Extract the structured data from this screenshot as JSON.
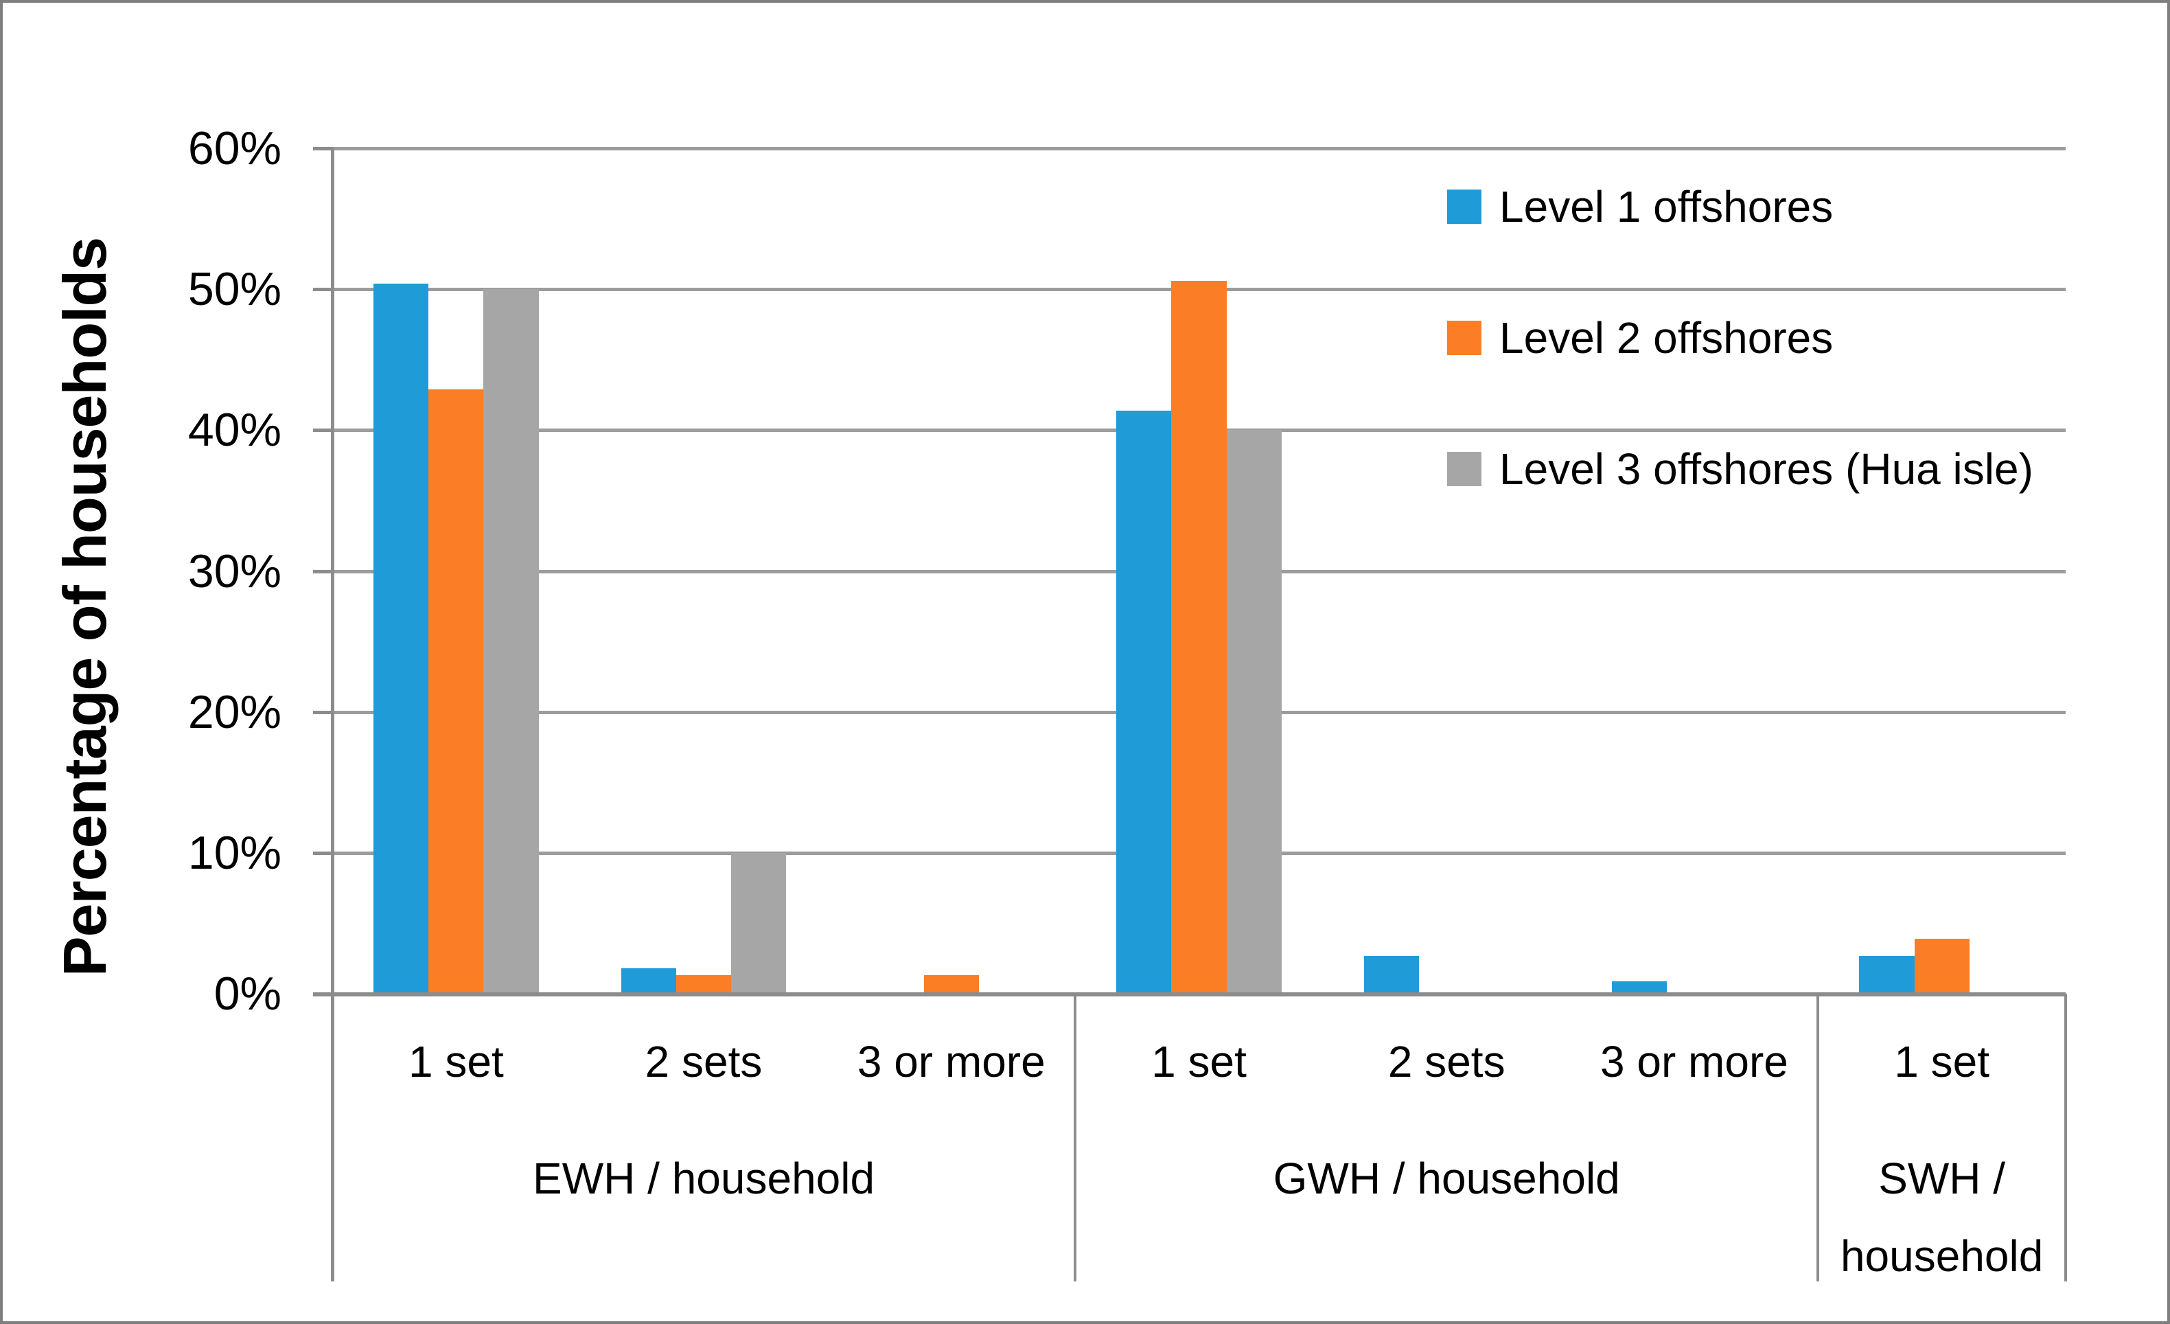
{
  "figure": {
    "background": "#FFFFFF",
    "border_color": "#7F7F7F"
  },
  "chart_data": {
    "type": "bar",
    "title": "",
    "ylabel": "Percentage of households",
    "ylim": [
      0,
      60
    ],
    "ytick_step": 10,
    "ytick_labels": [
      "0%",
      "10%",
      "20%",
      "30%",
      "40%",
      "50%",
      "60%"
    ],
    "grid": true,
    "gridline_color": "#9C9C9C",
    "axis_color": "#8C8C8C",
    "legend_position": "top-right-inside",
    "gap_width_percent": 150,
    "groups": [
      {
        "label": "EWH / household",
        "categories": [
          "1 set",
          "2 sets",
          "3 or more"
        ]
      },
      {
        "label": "GWH / household",
        "categories": [
          "1 set",
          "2 sets",
          "3 or more"
        ]
      },
      {
        "label": "SWH / household",
        "categories": [
          "1 set"
        ]
      }
    ],
    "categories": [
      "1 set",
      "2 sets",
      "3 or more",
      "1 set",
      "2 sets",
      "3 or more",
      "1 set"
    ],
    "series": [
      {
        "name": "Level 1 offshores",
        "color": "#1F9BD8",
        "values": [
          50.4,
          1.8,
          0,
          41.4,
          2.7,
          0.9,
          2.7
        ]
      },
      {
        "name": "Level 2 offshores",
        "color": "#FB7D26",
        "values": [
          42.9,
          1.3,
          1.3,
          50.6,
          0,
          0,
          3.9
        ]
      },
      {
        "name": "Level 3 offshores (Hua isle)",
        "color": "#A6A6A6",
        "values": [
          50,
          10,
          0,
          40,
          0,
          0,
          0
        ]
      }
    ]
  }
}
